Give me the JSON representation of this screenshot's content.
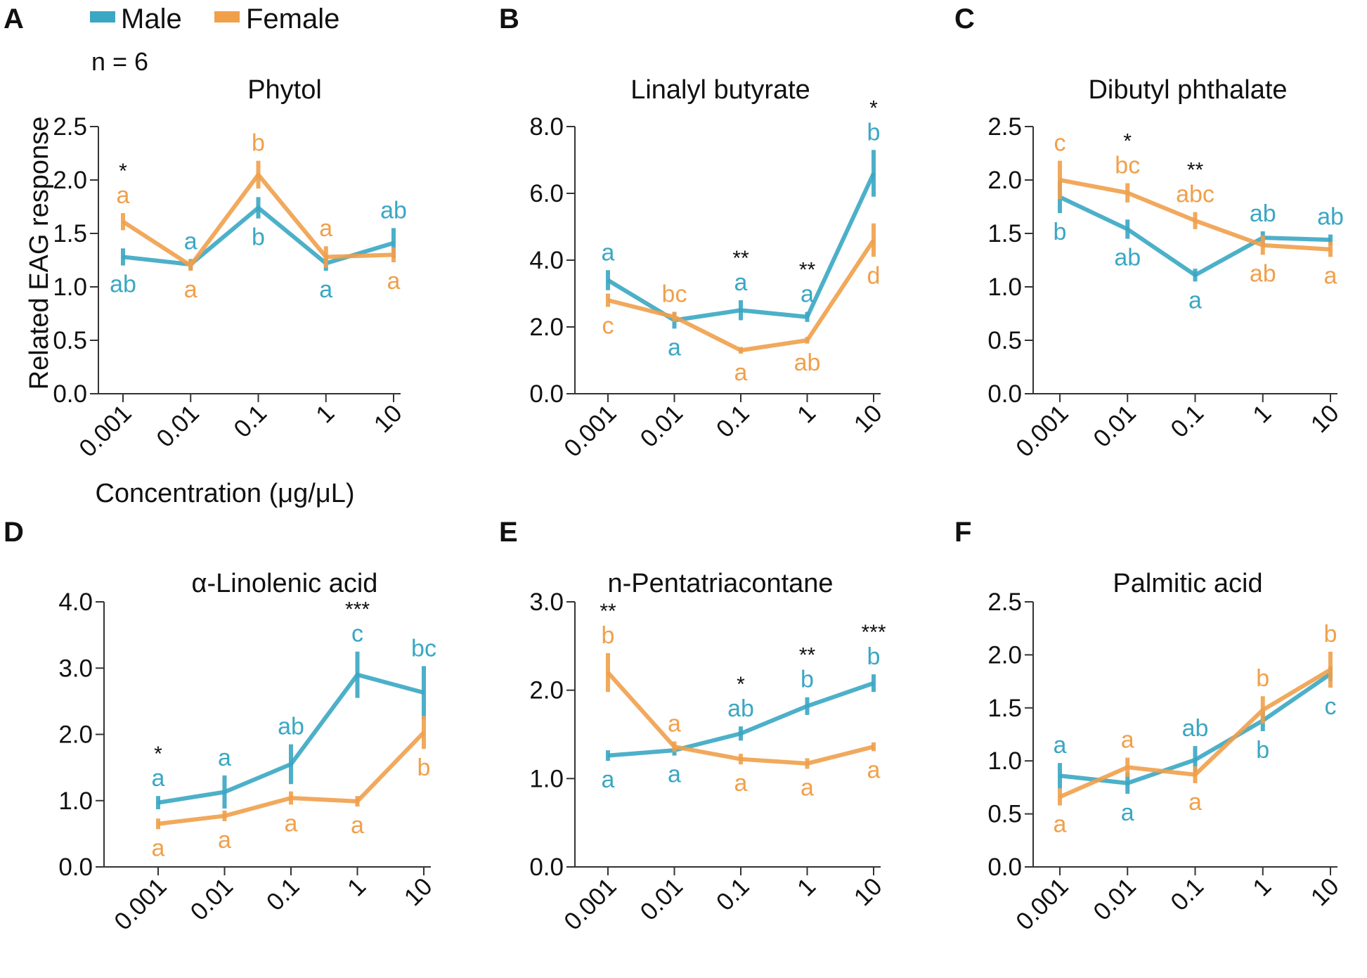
{
  "legend": {
    "male": {
      "label": "Male",
      "color": "#3aa7c3"
    },
    "female": {
      "label": "Female",
      "color": "#f0a04b"
    }
  },
  "sample_size": "n = 6",
  "axis_titles": {
    "y": "Related EAG response",
    "x": "Concentration (μg/μL)"
  },
  "chart_data": [
    {
      "panel": "A",
      "type": "line",
      "title": "Phytol",
      "categories": [
        "0.001",
        "0.01",
        "0.1",
        "1",
        "10"
      ],
      "ylim": [
        0,
        2.5
      ],
      "yticks": [
        "0.0",
        "0.5",
        "1.0",
        "1.5",
        "2.0",
        "2.5"
      ],
      "xlabel": "Concentration (μg/μL)",
      "ylabel": "Related EAG response",
      "series": [
        {
          "name": "Male",
          "values": [
            1.28,
            1.21,
            1.74,
            1.22,
            1.41
          ],
          "err": [
            0.08,
            0.05,
            0.1,
            0.07,
            0.14
          ],
          "letters": [
            "ab",
            "a",
            "b",
            "a",
            "ab"
          ]
        },
        {
          "name": "Female",
          "values": [
            1.61,
            1.2,
            2.05,
            1.28,
            1.3
          ],
          "err": [
            0.08,
            0.05,
            0.13,
            0.1,
            0.07
          ],
          "letters": [
            "a",
            "a",
            "b",
            "a",
            "a"
          ]
        }
      ],
      "stars": [
        "*",
        "",
        "",
        "",
        ""
      ]
    },
    {
      "panel": "B",
      "type": "line",
      "title": "Linalyl butyrate",
      "categories": [
        "0.001",
        "0.01",
        "0.1",
        "1",
        "10"
      ],
      "ylim": [
        0,
        8
      ],
      "yticks": [
        "0.0",
        "2.0",
        "4.0",
        "6.0",
        "8.0"
      ],
      "series": [
        {
          "name": "Male",
          "values": [
            3.4,
            2.2,
            2.5,
            2.3,
            6.6
          ],
          "err": [
            0.3,
            0.25,
            0.3,
            0.15,
            0.7
          ],
          "letters": [
            "a",
            "a",
            "a",
            "a",
            "b"
          ]
        },
        {
          "name": "Female",
          "values": [
            2.8,
            2.3,
            1.3,
            1.6,
            4.6
          ],
          "err": [
            0.2,
            0.15,
            0.1,
            0.1,
            0.5
          ],
          "letters": [
            "c",
            "bc",
            "a",
            "ab",
            "d"
          ]
        }
      ],
      "stars": [
        "",
        "",
        "**",
        "**",
        "*"
      ]
    },
    {
      "panel": "C",
      "type": "line",
      "title": "Dibutyl phthalate",
      "categories": [
        "0.001",
        "0.01",
        "0.1",
        "1",
        "10"
      ],
      "ylim": [
        0,
        2.5
      ],
      "yticks": [
        "0.0",
        "0.5",
        "1.0",
        "1.5",
        "2.0",
        "2.5"
      ],
      "series": [
        {
          "name": "Male",
          "values": [
            1.84,
            1.54,
            1.11,
            1.46,
            1.44
          ],
          "err": [
            0.15,
            0.09,
            0.06,
            0.06,
            0.05
          ],
          "letters": [
            "b",
            "ab",
            "a",
            "ab",
            "ab"
          ]
        },
        {
          "name": "Female",
          "values": [
            2.0,
            1.88,
            1.62,
            1.39,
            1.35
          ],
          "err": [
            0.18,
            0.09,
            0.08,
            0.09,
            0.07
          ],
          "letters": [
            "c",
            "bc",
            "abc",
            "ab",
            "a"
          ]
        }
      ],
      "stars": [
        "",
        "*",
        "**",
        "",
        ""
      ]
    },
    {
      "panel": "D",
      "type": "line",
      "title": "α-Linolenic acid",
      "categories": [
        "0.001",
        "0.01",
        "0.1",
        "1",
        "10"
      ],
      "ylim": [
        0,
        4
      ],
      "yticks": [
        "0.0",
        "1.0",
        "2.0",
        "3.0",
        "4.0"
      ],
      "series": [
        {
          "name": "Male",
          "values": [
            0.97,
            1.13,
            1.55,
            2.9,
            2.63
          ],
          "err": [
            0.1,
            0.25,
            0.3,
            0.35,
            0.4
          ],
          "letters": [
            "a",
            "a",
            "ab",
            "c",
            "bc"
          ]
        },
        {
          "name": "Female",
          "values": [
            0.65,
            0.77,
            1.04,
            0.99,
            2.03
          ],
          "err": [
            0.08,
            0.08,
            0.1,
            0.08,
            0.25
          ],
          "letters": [
            "a",
            "a",
            "a",
            "a",
            "b"
          ]
        }
      ],
      "stars": [
        "*",
        "",
        "",
        "***",
        ""
      ]
    },
    {
      "panel": "E",
      "type": "line",
      "title": "n-Pentatriacontane",
      "categories": [
        "0.001",
        "0.01",
        "0.1",
        "1",
        "10"
      ],
      "ylim": [
        0,
        3
      ],
      "yticks": [
        "0.0",
        "1.0",
        "2.0",
        "3.0"
      ],
      "series": [
        {
          "name": "Male",
          "values": [
            1.26,
            1.32,
            1.51,
            1.82,
            2.08
          ],
          "err": [
            0.06,
            0.06,
            0.08,
            0.1,
            0.1
          ],
          "letters": [
            "a",
            "a",
            "ab",
            "b",
            "b"
          ]
        },
        {
          "name": "Female",
          "values": [
            2.2,
            1.36,
            1.22,
            1.17,
            1.36
          ],
          "err": [
            0.22,
            0.06,
            0.06,
            0.06,
            0.05
          ],
          "letters": [
            "b",
            "a",
            "a",
            "a",
            "a"
          ]
        }
      ],
      "stars": [
        "**",
        "",
        "*",
        "**",
        "***"
      ]
    },
    {
      "panel": "F",
      "type": "line",
      "title": "Palmitic acid",
      "categories": [
        "0.001",
        "0.01",
        "0.1",
        "1",
        "10"
      ],
      "ylim": [
        0,
        2.5
      ],
      "yticks": [
        "0.0",
        "0.5",
        "1.0",
        "1.5",
        "2.0",
        "2.5"
      ],
      "series": [
        {
          "name": "Male",
          "values": [
            0.86,
            0.79,
            1.01,
            1.38,
            1.82
          ],
          "err": [
            0.12,
            0.1,
            0.13,
            0.1,
            0.07
          ],
          "letters": [
            "a",
            "a",
            "ab",
            "b",
            "c"
          ]
        },
        {
          "name": "Female",
          "values": [
            0.66,
            0.94,
            0.87,
            1.48,
            1.86
          ],
          "err": [
            0.08,
            0.09,
            0.08,
            0.13,
            0.17
          ],
          "letters": [
            "a",
            "a",
            "a",
            "b",
            "b"
          ]
        }
      ],
      "stars": [
        "",
        "",
        "",
        "",
        ""
      ]
    }
  ]
}
